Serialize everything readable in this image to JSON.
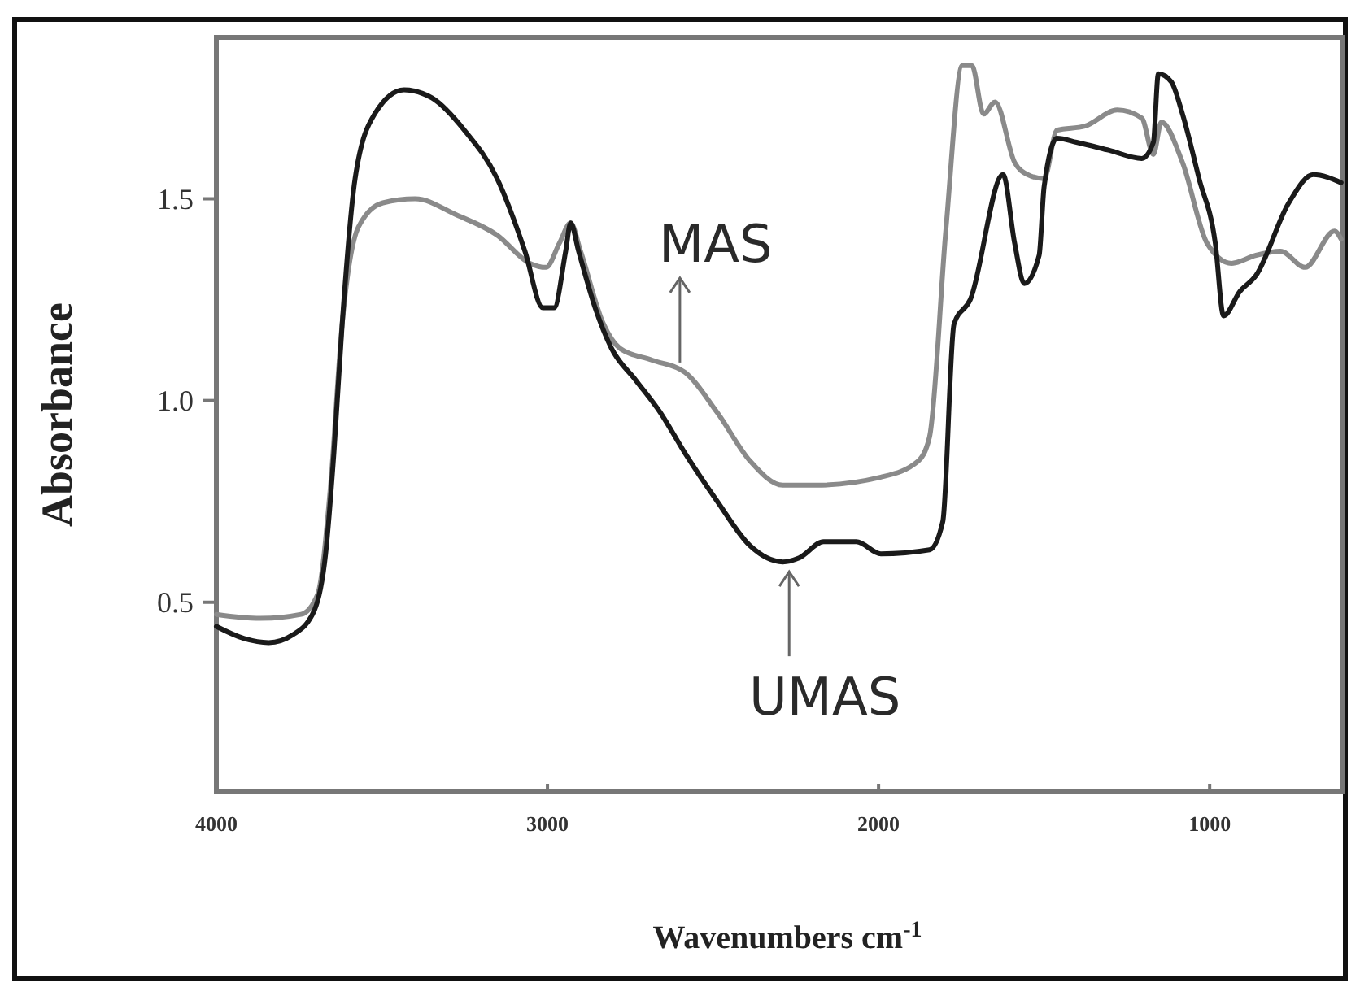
{
  "chart_data": {
    "type": "line",
    "xlabel": "Wavenumbers cm$^{-1}$",
    "ylabel": "Absorbance",
    "xlim": [
      4000,
      600
    ],
    "xticks": [
      4000,
      3000,
      2000,
      1000
    ],
    "ylim": [
      0.03,
      1.9
    ],
    "yticks": [
      {
        "value": 0.5,
        "label": "0.5"
      },
      {
        "value": 1.0,
        "label": "1.0"
      },
      {
        "value": 1.5,
        "label": "1.5"
      }
    ],
    "grid": false,
    "marker": "none",
    "annotations": [
      {
        "text": "MAS",
        "x": 2600,
        "y": 1.07
      },
      {
        "text": "UMAS",
        "x": 2270,
        "y": 0.6
      }
    ],
    "line_style": "solid",
    "series": [
      {
        "color": "#8a8a8a",
        "x": [
          4000,
          3867,
          3744,
          3694,
          3655,
          3620,
          3571,
          3497,
          3399,
          3275,
          3152,
          3053,
          3004,
          2964,
          2930,
          2900,
          2831,
          2782,
          2684,
          2585,
          2487,
          2388,
          2289,
          2190,
          1993,
          1880,
          1846,
          1796,
          1747,
          1718,
          1683,
          1648,
          1589,
          1550,
          1500,
          1461,
          1377,
          1279,
          1205,
          1170,
          1146,
          1082,
          1008,
          934,
          860,
          786,
          712,
          623,
          603
        ],
        "values": [
          0.47,
          0.46,
          0.47,
          0.52,
          0.79,
          1.19,
          1.43,
          1.49,
          1.5,
          1.46,
          1.41,
          1.34,
          1.33,
          1.39,
          1.44,
          1.37,
          1.19,
          1.13,
          1.1,
          1.07,
          0.97,
          0.85,
          0.79,
          0.79,
          0.81,
          0.85,
          0.91,
          1.43,
          1.83,
          1.83,
          1.71,
          1.74,
          1.59,
          1.56,
          1.55,
          1.67,
          1.68,
          1.72,
          1.7,
          1.61,
          1.69,
          1.59,
          1.39,
          1.34,
          1.36,
          1.37,
          1.33,
          1.42,
          1.4
        ]
      },
      {
        "color": "#1a1a1a",
        "x": [
          4000,
          3916,
          3842,
          3768,
          3704,
          3670,
          3645,
          3620,
          3581,
          3522,
          3433,
          3349,
          3251,
          3152,
          3068,
          3014,
          2980,
          2945,
          2930,
          2906,
          2856,
          2807,
          2733,
          2659,
          2585,
          2487,
          2388,
          2289,
          2240,
          2166,
          2067,
          1993,
          1846,
          1806,
          1772,
          1723,
          1624,
          1589,
          1560,
          1515,
          1500,
          1461,
          1402,
          1303,
          1205,
          1170,
          1155,
          1116,
          1082,
          1032,
          983,
          958,
          909,
          860,
          761,
          687,
          603
        ],
        "values": [
          0.44,
          0.41,
          0.4,
          0.42,
          0.48,
          0.62,
          0.87,
          1.19,
          1.55,
          1.71,
          1.77,
          1.75,
          1.67,
          1.55,
          1.37,
          1.23,
          1.23,
          1.37,
          1.44,
          1.37,
          1.23,
          1.13,
          1.05,
          0.97,
          0.87,
          0.75,
          0.64,
          0.6,
          0.61,
          0.65,
          0.65,
          0.62,
          0.63,
          0.7,
          1.19,
          1.25,
          1.56,
          1.39,
          1.29,
          1.36,
          1.53,
          1.65,
          1.64,
          1.62,
          1.6,
          1.64,
          1.81,
          1.79,
          1.71,
          1.55,
          1.39,
          1.21,
          1.27,
          1.31,
          1.49,
          1.56,
          1.54
        ]
      }
    ]
  }
}
